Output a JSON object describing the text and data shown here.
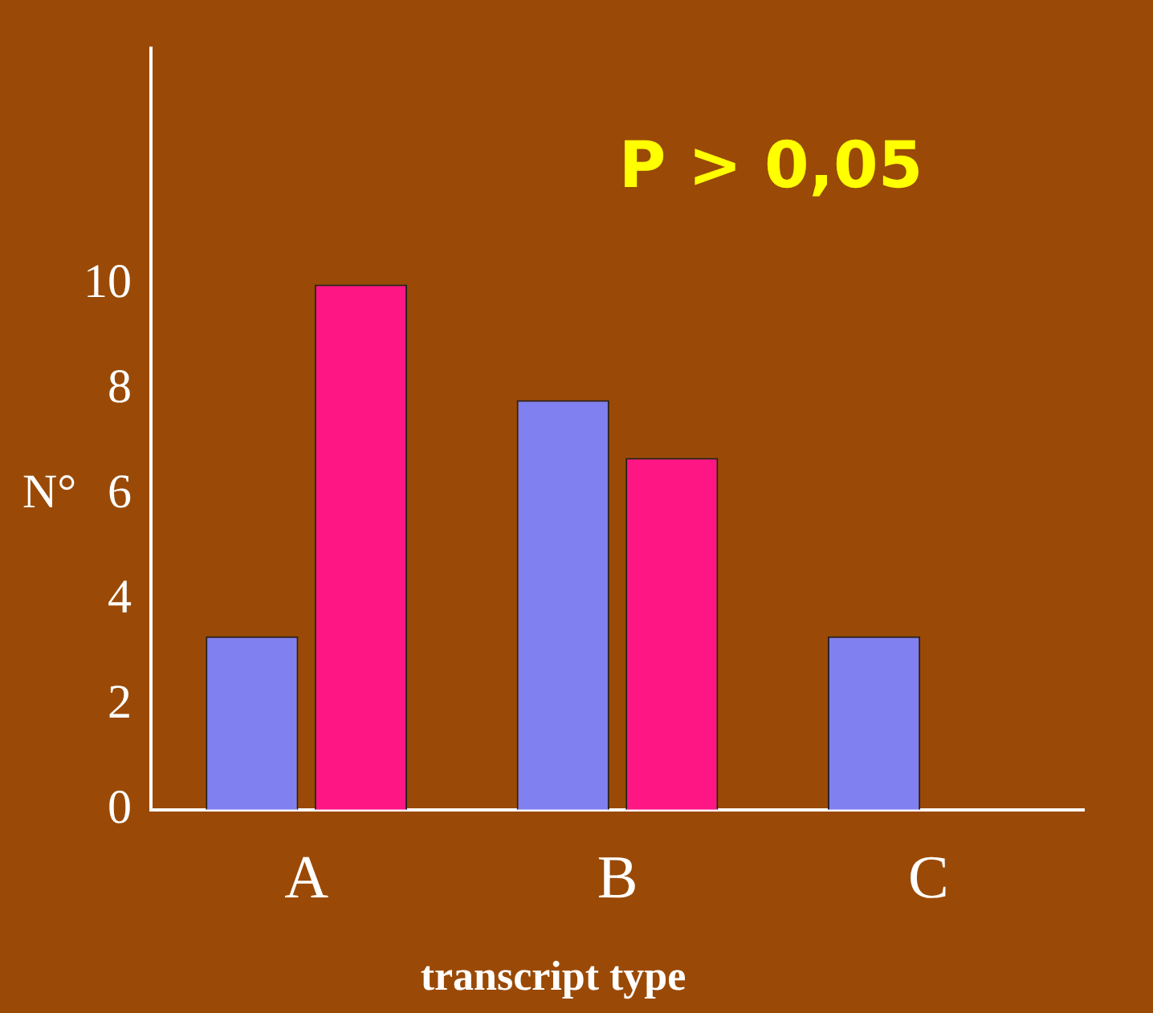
{
  "chart_data": {
    "type": "bar",
    "ylabel": "N°",
    "xlabel": "transcript type",
    "categories": [
      "A",
      "B",
      "C"
    ],
    "series": [
      {
        "color": "#8080f0",
        "values": [
          3.3,
          7.8,
          3.3
        ]
      },
      {
        "color": "#ff1685",
        "values": [
          10,
          6.7,
          null
        ]
      }
    ],
    "ylim": [
      0,
      14.5
    ],
    "yticks": [
      0,
      2,
      4,
      6,
      8,
      10
    ],
    "grid": false,
    "legend": false,
    "annotations": [
      "P > 0,05"
    ]
  }
}
